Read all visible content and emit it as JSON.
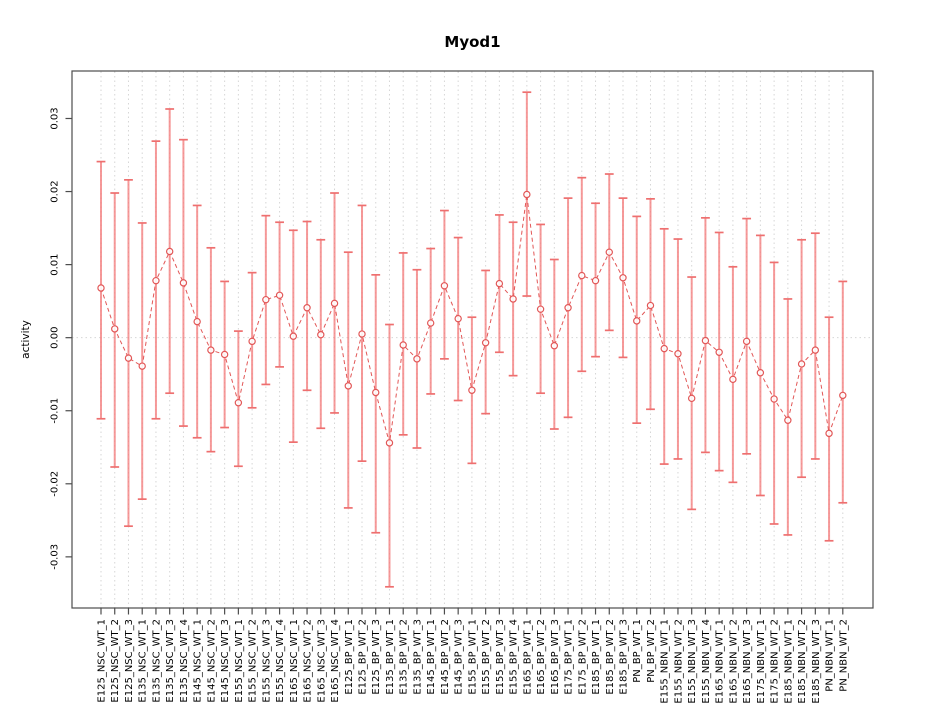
{
  "title": "Myod1",
  "chart_data": {
    "type": "line",
    "title": "Myod1",
    "xlabel": "",
    "ylabel": "activity",
    "ylim": [
      -0.037,
      0.0365
    ],
    "yticks": [
      -0.03,
      -0.02,
      -0.01,
      0.0,
      0.01,
      0.02,
      0.03
    ],
    "grid": "vertical dotted gridline at every category; dotted horizontal line at y=0",
    "legend_position": "none",
    "marker": "open-circle",
    "error_bars": true,
    "categories": [
      "E125_NSC_WT_1",
      "E125_NSC_WT_2",
      "E125_NSC_WT_3",
      "E135_NSC_WT_1",
      "E135_NSC_WT_2",
      "E135_NSC_WT_3",
      "E135_NSC_WT_4",
      "E145_NSC_WT_1",
      "E145_NSC_WT_2",
      "E145_NSC_WT_3",
      "E155_NSC_WT_1",
      "E155_NSC_WT_2",
      "E155_NSC_WT_3",
      "E155_NSC_WT_4",
      "E165_NSC_WT_1",
      "E165_NSC_WT_2",
      "E165_NSC_WT_3",
      "E165_NSC_WT_4",
      "E125_BP_WT_1",
      "E125_BP_WT_2",
      "E125_BP_WT_3",
      "E135_BP_WT_1",
      "E135_BP_WT_2",
      "E135_BP_WT_3",
      "E145_BP_WT_1",
      "E145_BP_WT_2",
      "E145_BP_WT_3",
      "E155_BP_WT_1",
      "E155_BP_WT_2",
      "E155_BP_WT_3",
      "E155_BP_WT_4",
      "E165_BP_WT_1",
      "E165_BP_WT_2",
      "E165_BP_WT_3",
      "E175_BP_WT_1",
      "E175_BP_WT_2",
      "E185_BP_WT_1",
      "E185_BP_WT_2",
      "E185_BP_WT_3",
      "PN_BP_WT_1",
      "PN_BP_WT_2",
      "E155_NBN_WT_1",
      "E155_NBN_WT_2",
      "E155_NBN_WT_3",
      "E155_NBN_WT_4",
      "E165_NBN_WT_1",
      "E165_NBN_WT_2",
      "E165_NBN_WT_3",
      "E175_NBN_WT_1",
      "E175_NBN_WT_2",
      "E185_NBN_WT_1",
      "E185_NBN_WT_2",
      "E185_NBN_WT_3",
      "PN_NBN_WT_1",
      "PN_NBN_WT_2"
    ],
    "series": [
      {
        "name": "activity",
        "values": [
          0.0068,
          0.0012,
          -0.0028,
          -0.0039,
          0.0078,
          0.0118,
          0.0075,
          0.0022,
          -0.0017,
          -0.0023,
          -0.0089,
          -0.0005,
          0.0052,
          0.0058,
          0.0002,
          0.0041,
          0.0004,
          0.0047,
          -0.0066,
          0.0005,
          -0.0075,
          -0.0144,
          -0.001,
          -0.0029,
          0.002,
          0.0071,
          0.0026,
          -0.0072,
          -0.0007,
          0.0074,
          0.0053,
          0.0196,
          0.0039,
          -0.0011,
          0.0041,
          0.0085,
          0.0078,
          0.0117,
          0.0082,
          0.0023,
          0.0044,
          -0.0015,
          -0.0022,
          -0.0083,
          -0.0004,
          -0.002,
          -0.0057,
          -0.0005,
          -0.0048,
          -0.0084,
          -0.0113,
          -0.0036,
          -0.0017,
          -0.0131,
          -0.0079
        ],
        "err_low": [
          -0.0111,
          -0.0177,
          -0.0258,
          -0.0221,
          -0.0111,
          -0.0076,
          -0.0121,
          -0.0137,
          -0.0156,
          -0.0123,
          -0.0176,
          -0.0096,
          -0.0064,
          -0.004,
          -0.0143,
          -0.0072,
          -0.0124,
          -0.0103,
          -0.0233,
          -0.0169,
          -0.0267,
          -0.0341,
          -0.0133,
          -0.0151,
          -0.0077,
          -0.0029,
          -0.0086,
          -0.0172,
          -0.0104,
          -0.002,
          -0.0052,
          0.0057,
          -0.0076,
          -0.0125,
          -0.0109,
          -0.0046,
          -0.0026,
          0.001,
          -0.0027,
          -0.0117,
          -0.0098,
          -0.0173,
          -0.0166,
          -0.0235,
          -0.0157,
          -0.0182,
          -0.0198,
          -0.0159,
          -0.0216,
          -0.0255,
          -0.027,
          -0.0191,
          -0.0166,
          -0.0278,
          -0.0226
        ],
        "err_high": [
          0.0241,
          0.0198,
          0.0216,
          0.0157,
          0.0269,
          0.0313,
          0.0271,
          0.0181,
          0.0123,
          0.0077,
          0.0009,
          0.0089,
          0.0167,
          0.0158,
          0.0147,
          0.0159,
          0.0134,
          0.0198,
          0.0117,
          0.0181,
          0.0086,
          0.0018,
          0.0116,
          0.0093,
          0.0122,
          0.0174,
          0.0137,
          0.0028,
          0.0092,
          0.0168,
          0.0158,
          0.0336,
          0.0155,
          0.0107,
          0.0191,
          0.0219,
          0.0184,
          0.0224,
          0.0191,
          0.0166,
          0.019,
          0.0149,
          0.0135,
          0.0083,
          0.0164,
          0.0144,
          0.0097,
          0.0163,
          0.014,
          0.0103,
          0.0053,
          0.0134,
          0.0143,
          0.0028,
          0.0077
        ]
      }
    ]
  },
  "colors": {
    "series_stroke": "#e25757",
    "error_bar": "#f47f7f",
    "error_cap": "#ee6f6f",
    "gridline": "#d6d6d6",
    "axis": "#4d4d4d",
    "background": "#ffffff"
  }
}
